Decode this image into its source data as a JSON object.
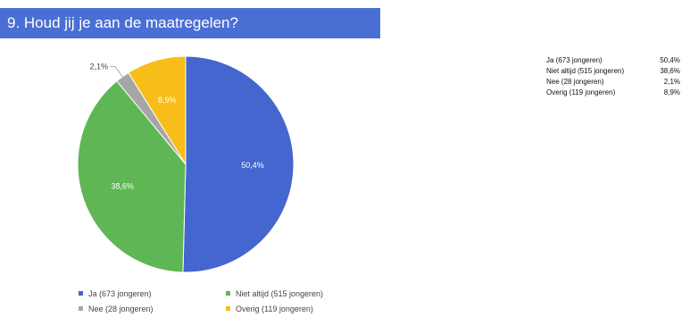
{
  "title": "9. Houd jij je aan de maatregelen?",
  "colors": {
    "title_bar": "#4a6fd4",
    "ja": "#4565cf",
    "niet_altijd": "#5eb654",
    "nee": "#a6a6a6",
    "overig": "#f7be19"
  },
  "chart_data": {
    "type": "pie",
    "slices": [
      {
        "label": "Ja (673 jongeren)",
        "value": 50.4,
        "value_label": "50,4%",
        "color": "#4565cf"
      },
      {
        "label": "Niet altijd (515 jongeren)",
        "value": 38.6,
        "value_label": "38,6%",
        "color": "#5eb654"
      },
      {
        "label": "Nee (28 jongeren)",
        "value": 2.1,
        "value_label": "2,1%",
        "color": "#a6a6a6"
      },
      {
        "label": "Overig (119 jongeren)",
        "value": 8.9,
        "value_label": "8,9%",
        "color": "#f7be19"
      }
    ],
    "legend": [
      "Ja (673 jongeren)",
      "Niet altijd (515 jongeren)",
      "Nee (28 jongeren)",
      "Overig (119 jongeren)"
    ],
    "legend_position": "bottom"
  },
  "side_table": [
    {
      "label": "Ja (673 jongeren)",
      "value": "50,4%"
    },
    {
      "label": "Niet altijd (515 jongeren)",
      "value": "38,6%"
    },
    {
      "label": "Nee (28 jongeren)",
      "value": "2,1%"
    },
    {
      "label": "Overig (119 jongeren)",
      "value": "8,9%"
    }
  ]
}
